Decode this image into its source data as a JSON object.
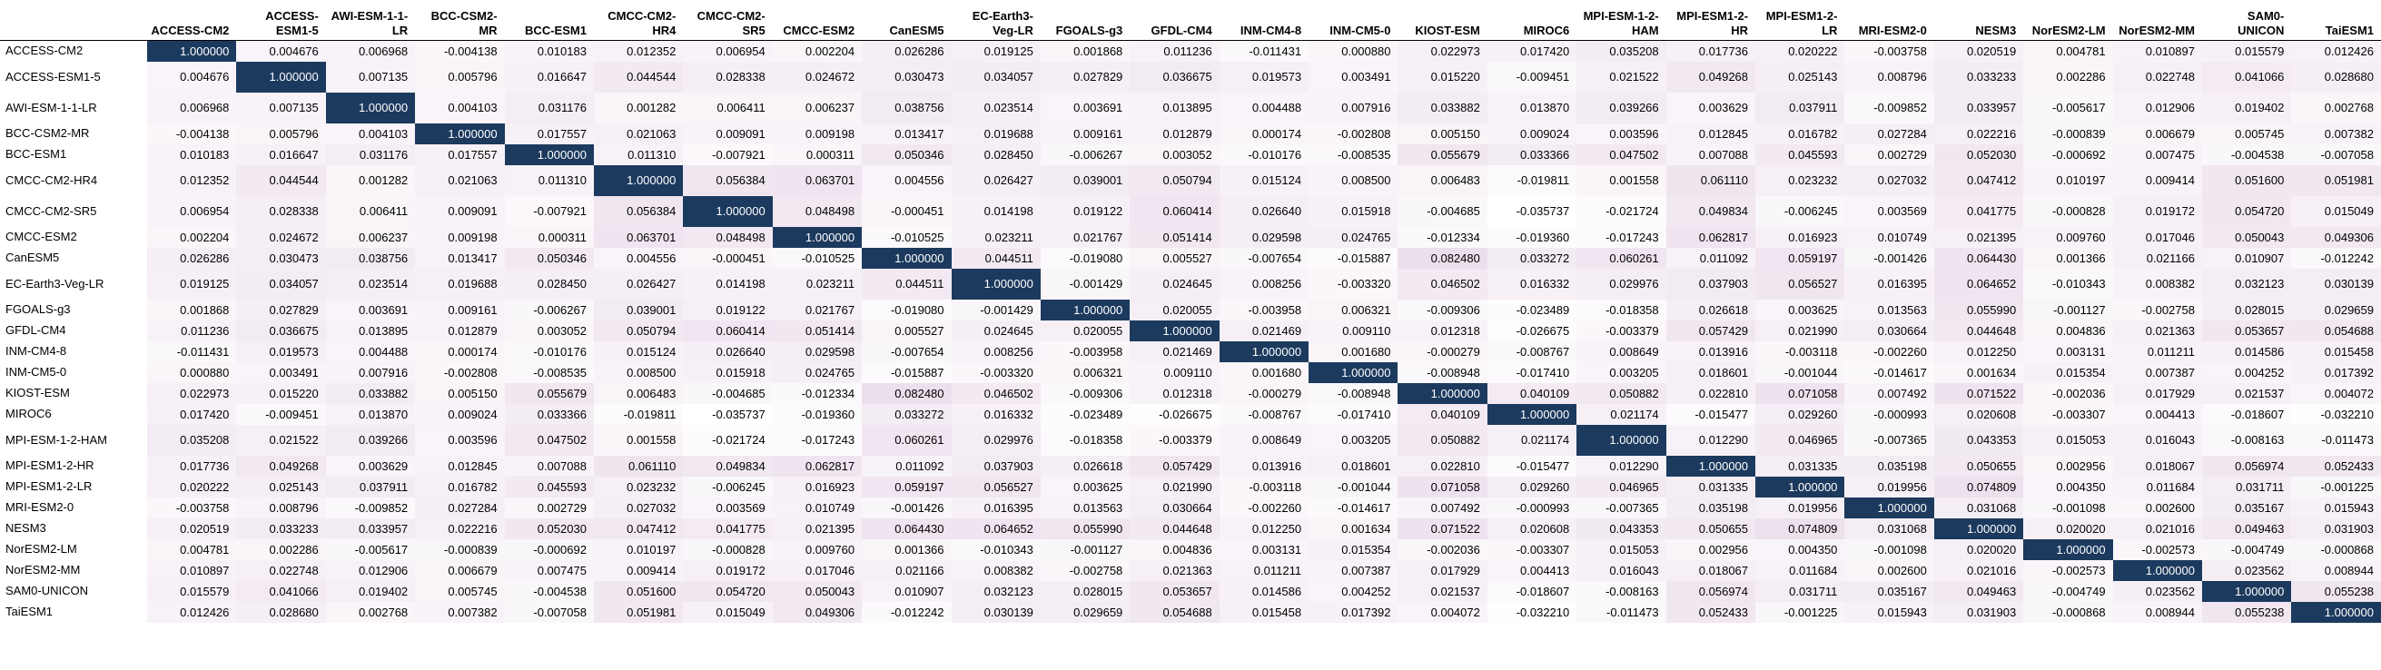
{
  "chart_data": {
    "type": "heatmap",
    "models": [
      "ACCESS-CM2",
      "ACCESS-ESM1-5",
      "AWI-ESM-1-1-LR",
      "BCC-CSM2-MR",
      "BCC-ESM1",
      "CMCC-CM2-HR4",
      "CMCC-CM2-SR5",
      "CMCC-ESM2",
      "CanESM5",
      "EC-Earth3-Veg-LR",
      "FGOALS-g3",
      "GFDL-CM4",
      "INM-CM4-8",
      "INM-CM5-0",
      "KIOST-ESM",
      "MIROC6",
      "MPI-ESM-1-2-HAM",
      "MPI-ESM1-2-HR",
      "MPI-ESM1-2-LR",
      "MRI-ESM2-0",
      "NESM3",
      "NorESM2-LM",
      "NorESM2-MM",
      "SAM0-UNICON",
      "TaiESM1"
    ],
    "matrix": [
      [
        "1.000000",
        "0.004676",
        "0.006968",
        "-0.004138",
        "0.010183",
        "0.012352",
        "0.006954",
        "0.002204",
        "0.026286",
        "0.019125",
        "0.001868",
        "0.011236",
        "-0.011431",
        "0.000880",
        "0.022973",
        "0.017420",
        "0.035208",
        "0.017736",
        "0.020222",
        "-0.003758",
        "0.020519",
        "0.004781",
        "0.010897",
        "0.015579",
        "0.012426"
      ],
      [
        "0.004676",
        "1.000000",
        "0.007135",
        "0.005796",
        "0.016647",
        "0.044544",
        "0.028338",
        "0.024672",
        "0.030473",
        "0.034057",
        "0.027829",
        "0.036675",
        "0.019573",
        "0.003491",
        "0.015220",
        "-0.009451",
        "0.021522",
        "0.049268",
        "0.025143",
        "0.008796",
        "0.033233",
        "0.002286",
        "0.022748",
        "0.041066",
        "0.028680"
      ],
      [
        "0.006968",
        "0.007135",
        "1.000000",
        "0.004103",
        "0.031176",
        "0.001282",
        "0.006411",
        "0.006237",
        "0.038756",
        "0.023514",
        "0.003691",
        "0.013895",
        "0.004488",
        "0.007916",
        "0.033882",
        "0.013870",
        "0.039266",
        "0.003629",
        "0.037911",
        "-0.009852",
        "0.033957",
        "-0.005617",
        "0.012906",
        "0.019402",
        "0.002768"
      ],
      [
        "-0.004138",
        "0.005796",
        "0.004103",
        "1.000000",
        "0.017557",
        "0.021063",
        "0.009091",
        "0.009198",
        "0.013417",
        "0.019688",
        "0.009161",
        "0.012879",
        "0.000174",
        "-0.002808",
        "0.005150",
        "0.009024",
        "0.003596",
        "0.012845",
        "0.016782",
        "0.027284",
        "0.022216",
        "-0.000839",
        "0.006679",
        "0.005745",
        "0.007382"
      ],
      [
        "0.010183",
        "0.016647",
        "0.031176",
        "0.017557",
        "1.000000",
        "0.011310",
        "-0.007921",
        "0.000311",
        "0.050346",
        "0.028450",
        "-0.006267",
        "0.003052",
        "-0.010176",
        "-0.008535",
        "0.055679",
        "0.033366",
        "0.047502",
        "0.007088",
        "0.045593",
        "0.002729",
        "0.052030",
        "-0.000692",
        "0.007475",
        "-0.004538",
        "-0.007058"
      ],
      [
        "0.012352",
        "0.044544",
        "0.001282",
        "0.021063",
        "0.011310",
        "1.000000",
        "0.056384",
        "0.063701",
        "0.004556",
        "0.026427",
        "0.039001",
        "0.050794",
        "0.015124",
        "0.008500",
        "0.006483",
        "-0.019811",
        "0.001558",
        "0.061110",
        "0.023232",
        "0.027032",
        "0.047412",
        "0.010197",
        "0.009414",
        "0.051600",
        "0.051981"
      ],
      [
        "0.006954",
        "0.028338",
        "0.006411",
        "0.009091",
        "-0.007921",
        "0.056384",
        "1.000000",
        "0.048498",
        "-0.000451",
        "0.014198",
        "0.019122",
        "0.060414",
        "0.026640",
        "0.015918",
        "-0.004685",
        "-0.035737",
        "-0.021724",
        "0.049834",
        "-0.006245",
        "0.003569",
        "0.041775",
        "-0.000828",
        "0.019172",
        "0.054720",
        "0.015049"
      ],
      [
        "0.002204",
        "0.024672",
        "0.006237",
        "0.009198",
        "0.000311",
        "0.063701",
        "0.048498",
        "1.000000",
        "-0.010525",
        "0.023211",
        "0.021767",
        "0.051414",
        "0.029598",
        "0.024765",
        "-0.012334",
        "-0.019360",
        "-0.017243",
        "0.062817",
        "0.016923",
        "0.010749",
        "0.021395",
        "0.009760",
        "0.017046",
        "0.050043",
        "0.049306"
      ],
      [
        "0.026286",
        "0.030473",
        "0.038756",
        "0.013417",
        "0.050346",
        "0.004556",
        "-0.000451",
        "-0.010525",
        "1.000000",
        "0.044511",
        "-0.019080",
        "0.005527",
        "-0.007654",
        "-0.015887",
        "0.082480",
        "0.033272",
        "0.060261",
        "0.011092",
        "0.059197",
        "-0.001426",
        "0.064430",
        "0.001366",
        "0.021166",
        "0.010907",
        "-0.012242"
      ],
      [
        "0.019125",
        "0.034057",
        "0.023514",
        "0.019688",
        "0.028450",
        "0.026427",
        "0.014198",
        "0.023211",
        "0.044511",
        "1.000000",
        "-0.001429",
        "0.024645",
        "0.008256",
        "-0.003320",
        "0.046502",
        "0.016332",
        "0.029976",
        "0.037903",
        "0.056527",
        "0.016395",
        "0.064652",
        "-0.010343",
        "0.008382",
        "0.032123",
        "0.030139"
      ],
      [
        "0.001868",
        "0.027829",
        "0.003691",
        "0.009161",
        "-0.006267",
        "0.039001",
        "0.019122",
        "0.021767",
        "-0.019080",
        "-0.001429",
        "1.000000",
        "0.020055",
        "-0.003958",
        "0.006321",
        "-0.009306",
        "-0.023489",
        "-0.018358",
        "0.026618",
        "0.003625",
        "0.013563",
        "0.055990",
        "-0.001127",
        "-0.002758",
        "0.028015",
        "0.029659"
      ],
      [
        "0.011236",
        "0.036675",
        "0.013895",
        "0.012879",
        "0.003052",
        "0.050794",
        "0.060414",
        "0.051414",
        "0.005527",
        "0.024645",
        "0.020055",
        "1.000000",
        "0.021469",
        "0.009110",
        "0.012318",
        "-0.026675",
        "-0.003379",
        "0.057429",
        "0.021990",
        "0.030664",
        "0.044648",
        "0.004836",
        "0.021363",
        "0.053657",
        "0.054688"
      ],
      [
        "-0.011431",
        "0.019573",
        "0.004488",
        "0.000174",
        "-0.010176",
        "0.015124",
        "0.026640",
        "0.029598",
        "-0.007654",
        "0.008256",
        "-0.003958",
        "0.021469",
        "1.000000",
        "0.001680",
        "-0.000279",
        "-0.008767",
        "0.008649",
        "0.013916",
        "-0.003118",
        "-0.002260",
        "0.012250",
        "0.003131",
        "0.011211",
        "0.014586",
        "0.015458"
      ],
      [
        "0.000880",
        "0.003491",
        "0.007916",
        "-0.002808",
        "-0.008535",
        "0.008500",
        "0.015918",
        "0.024765",
        "-0.015887",
        "-0.003320",
        "0.006321",
        "0.009110",
        "0.001680",
        "1.000000",
        "-0.008948",
        "-0.017410",
        "0.003205",
        "0.018601",
        "-0.001044",
        "-0.014617",
        "0.001634",
        "0.015354",
        "0.007387",
        "0.004252",
        "0.017392"
      ],
      [
        "0.022973",
        "0.015220",
        "0.033882",
        "0.005150",
        "0.055679",
        "0.006483",
        "-0.004685",
        "-0.012334",
        "0.082480",
        "0.046502",
        "-0.009306",
        "0.012318",
        "-0.000279",
        "-0.008948",
        "1.000000",
        "0.040109",
        "0.050882",
        "0.022810",
        "0.071058",
        "0.007492",
        "0.071522",
        "-0.002036",
        "0.017929",
        "0.021537",
        "0.004072"
      ],
      [
        "0.017420",
        "-0.009451",
        "0.013870",
        "0.009024",
        "0.033366",
        "-0.019811",
        "-0.035737",
        "-0.019360",
        "0.033272",
        "0.016332",
        "-0.023489",
        "-0.026675",
        "-0.008767",
        "-0.017410",
        "0.040109",
        "1.000000",
        "0.021174",
        "-0.015477",
        "0.029260",
        "-0.000993",
        "0.020608",
        "-0.003307",
        "0.004413",
        "-0.018607",
        "-0.032210"
      ],
      [
        "0.035208",
        "0.021522",
        "0.039266",
        "0.003596",
        "0.047502",
        "0.001558",
        "-0.021724",
        "-0.017243",
        "0.060261",
        "0.029976",
        "-0.018358",
        "-0.003379",
        "0.008649",
        "0.003205",
        "0.050882",
        "0.021174",
        "1.000000",
        "0.012290",
        "0.046965",
        "-0.007365",
        "0.043353",
        "0.015053",
        "0.016043",
        "-0.008163",
        "-0.011473"
      ],
      [
        "0.017736",
        "0.049268",
        "0.003629",
        "0.012845",
        "0.007088",
        "0.061110",
        "0.049834",
        "0.062817",
        "0.011092",
        "0.037903",
        "0.026618",
        "0.057429",
        "0.013916",
        "0.018601",
        "0.022810",
        "-0.015477",
        "0.012290",
        "1.000000",
        "0.031335",
        "0.035198",
        "0.050655",
        "0.002956",
        "0.018067",
        "0.056974",
        "0.052433"
      ],
      [
        "0.020222",
        "0.025143",
        "0.037911",
        "0.016782",
        "0.045593",
        "0.023232",
        "-0.006245",
        "0.016923",
        "0.059197",
        "0.056527",
        "0.003625",
        "0.021990",
        "-0.003118",
        "-0.001044",
        "0.071058",
        "0.029260",
        "0.046965",
        "0.031335",
        "1.000000",
        "0.019956",
        "0.074809",
        "0.004350",
        "0.011684",
        "0.031711",
        "-0.001225"
      ],
      [
        "-0.003758",
        "0.008796",
        "-0.009852",
        "0.027284",
        "0.002729",
        "0.027032",
        "0.003569",
        "0.010749",
        "-0.001426",
        "0.016395",
        "0.013563",
        "0.030664",
        "-0.002260",
        "-0.014617",
        "0.007492",
        "-0.000993",
        "-0.007365",
        "0.035198",
        "0.019956",
        "1.000000",
        "0.031068",
        "-0.001098",
        "0.002600",
        "0.035167",
        "0.015943"
      ],
      [
        "0.020519",
        "0.033233",
        "0.033957",
        "0.022216",
        "0.052030",
        "0.047412",
        "0.041775",
        "0.021395",
        "0.064430",
        "0.064652",
        "0.055990",
        "0.044648",
        "0.012250",
        "0.001634",
        "0.071522",
        "0.020608",
        "0.043353",
        "0.050655",
        "0.074809",
        "0.031068",
        "1.000000",
        "0.020020",
        "0.021016",
        "0.049463",
        "0.031903"
      ],
      [
        "0.004781",
        "0.002286",
        "-0.005617",
        "-0.000839",
        "-0.000692",
        "0.010197",
        "-0.000828",
        "0.009760",
        "0.001366",
        "-0.010343",
        "-0.001127",
        "0.004836",
        "0.003131",
        "0.015354",
        "-0.002036",
        "-0.003307",
        "0.015053",
        "0.002956",
        "0.004350",
        "-0.001098",
        "0.020020",
        "1.000000",
        "-0.002573",
        "-0.004749",
        "-0.000868"
      ],
      [
        "0.010897",
        "0.022748",
        "0.012906",
        "0.006679",
        "0.007475",
        "0.009414",
        "0.019172",
        "0.017046",
        "0.021166",
        "0.008382",
        "-0.002758",
        "0.021363",
        "0.011211",
        "0.007387",
        "0.017929",
        "0.004413",
        "0.016043",
        "0.018067",
        "0.011684",
        "0.002600",
        "0.021016",
        "-0.002573",
        "1.000000",
        "0.023562",
        "0.008944"
      ],
      [
        "0.015579",
        "0.041066",
        "0.019402",
        "0.005745",
        "-0.004538",
        "0.051600",
        "0.054720",
        "0.050043",
        "0.010907",
        "0.032123",
        "0.028015",
        "0.053657",
        "0.014586",
        "0.004252",
        "0.021537",
        "-0.018607",
        "-0.008163",
        "0.056974",
        "0.031711",
        "0.035167",
        "0.049463",
        "-0.004749",
        "0.023562",
        "1.000000",
        "0.055238"
      ],
      [
        "0.012426",
        "0.028680",
        "0.002768",
        "0.007382",
        "-0.007058",
        "0.051981",
        "0.015049",
        "0.049306",
        "-0.012242",
        "0.030139",
        "0.029659",
        "0.054688",
        "0.015458",
        "0.017392",
        "0.004072",
        "-0.032210",
        "-0.011473",
        "0.052433",
        "-0.001225",
        "0.015943",
        "0.031903",
        "-0.000868",
        "0.008944",
        "0.055238",
        "1.000000"
      ]
    ],
    "color_low": "#ffffff",
    "color_off_diagonal_high": "#ecdfec",
    "color_diagonal": "#1c3a5e"
  }
}
